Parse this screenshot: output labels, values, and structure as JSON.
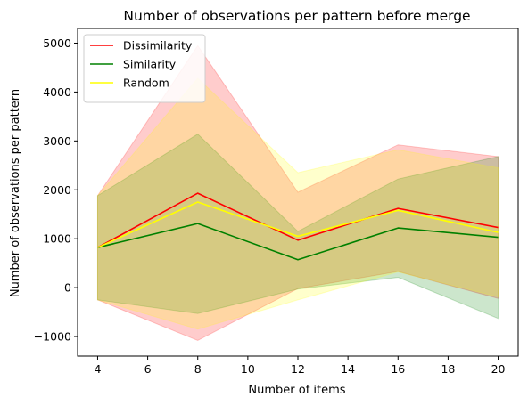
{
  "chart_data": {
    "type": "line",
    "title": "Number of observations per pattern before merge",
    "xlabel": "Number of items",
    "ylabel": "Number of observations per pattern",
    "x": [
      4,
      8,
      12,
      16,
      20
    ],
    "xlim": [
      3.2,
      20.8
    ],
    "ylim": [
      -1400,
      5300
    ],
    "xticks": [
      4,
      6,
      8,
      10,
      12,
      14,
      16,
      18,
      20
    ],
    "yticks": [
      -1000,
      0,
      1000,
      2000,
      3000,
      4000,
      5000
    ],
    "ytick_labels": [
      "−1000",
      "0",
      "1000",
      "2000",
      "3000",
      "4000",
      "5000"
    ],
    "grid": false,
    "legend_position": "top-left",
    "series": [
      {
        "name": "Dissimilarity",
        "color": "#ff0000",
        "band_color": "#ff0000",
        "band_opacity": 0.2,
        "values": [
          820,
          1930,
          970,
          1620,
          1230
        ],
        "upper": [
          1880,
          4950,
          1950,
          2920,
          2680
        ],
        "lower": [
          -250,
          -1080,
          -20,
          330,
          -220
        ]
      },
      {
        "name": "Similarity",
        "color": "#008000",
        "band_color": "#008000",
        "band_opacity": 0.2,
        "values": [
          820,
          1310,
          570,
          1220,
          1030
        ],
        "upper": [
          1880,
          3140,
          1150,
          2220,
          2680
        ],
        "lower": [
          -250,
          -530,
          -30,
          210,
          -630
        ]
      },
      {
        "name": "Random",
        "color": "#ffff00",
        "band_color": "#ffff00",
        "band_opacity": 0.2,
        "values": [
          820,
          1750,
          1050,
          1580,
          1130
        ],
        "upper": [
          1880,
          4280,
          2350,
          2820,
          2450
        ],
        "lower": [
          -250,
          -850,
          -250,
          320,
          -190
        ]
      }
    ]
  }
}
